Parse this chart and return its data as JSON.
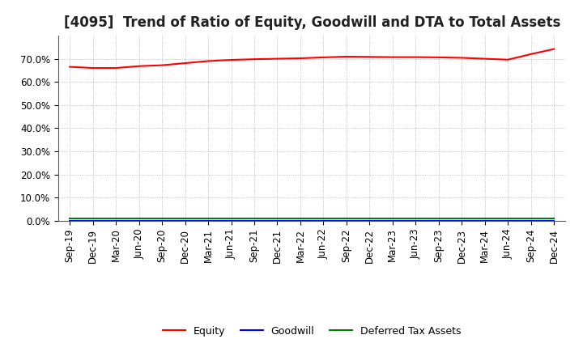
{
  "title": "[4095]  Trend of Ratio of Equity, Goodwill and DTA to Total Assets",
  "x_labels": [
    "Sep-19",
    "Dec-19",
    "Mar-20",
    "Jun-20",
    "Sep-20",
    "Dec-20",
    "Mar-21",
    "Jun-21",
    "Sep-21",
    "Dec-21",
    "Mar-22",
    "Jun-22",
    "Sep-22",
    "Dec-22",
    "Mar-23",
    "Jun-23",
    "Sep-23",
    "Dec-23",
    "Mar-24",
    "Jun-24",
    "Sep-24",
    "Dec-24"
  ],
  "equity": [
    0.665,
    0.66,
    0.66,
    0.668,
    0.672,
    0.681,
    0.69,
    0.695,
    0.698,
    0.7,
    0.702,
    0.706,
    0.709,
    0.708,
    0.707,
    0.707,
    0.706,
    0.704,
    0.7,
    0.696,
    0.72,
    0.742
  ],
  "goodwill": [
    0.0,
    0.0,
    0.0,
    0.0,
    0.0,
    0.0,
    0.0,
    0.0,
    0.0,
    0.0,
    0.0,
    0.0,
    0.0,
    0.0,
    0.0,
    0.0,
    0.0,
    0.0,
    0.0,
    0.0,
    0.0,
    0.0
  ],
  "dta": [
    0.01,
    0.01,
    0.01,
    0.01,
    0.01,
    0.01,
    0.01,
    0.01,
    0.01,
    0.01,
    0.01,
    0.01,
    0.01,
    0.01,
    0.01,
    0.01,
    0.01,
    0.01,
    0.01,
    0.01,
    0.01,
    0.01
  ],
  "equity_color": "#ff0000",
  "goodwill_color": "#0000ff",
  "dta_color": "#008000",
  "ylim": [
    0.0,
    0.8
  ],
  "yticks": [
    0.0,
    0.1,
    0.2,
    0.3,
    0.4,
    0.5,
    0.6,
    0.7
  ],
  "background_color": "#ffffff",
  "grid_color": "#b0b0b0",
  "legend_labels": [
    "Equity",
    "Goodwill",
    "Deferred Tax Assets"
  ],
  "title_fontsize": 12,
  "axis_fontsize": 8.5
}
